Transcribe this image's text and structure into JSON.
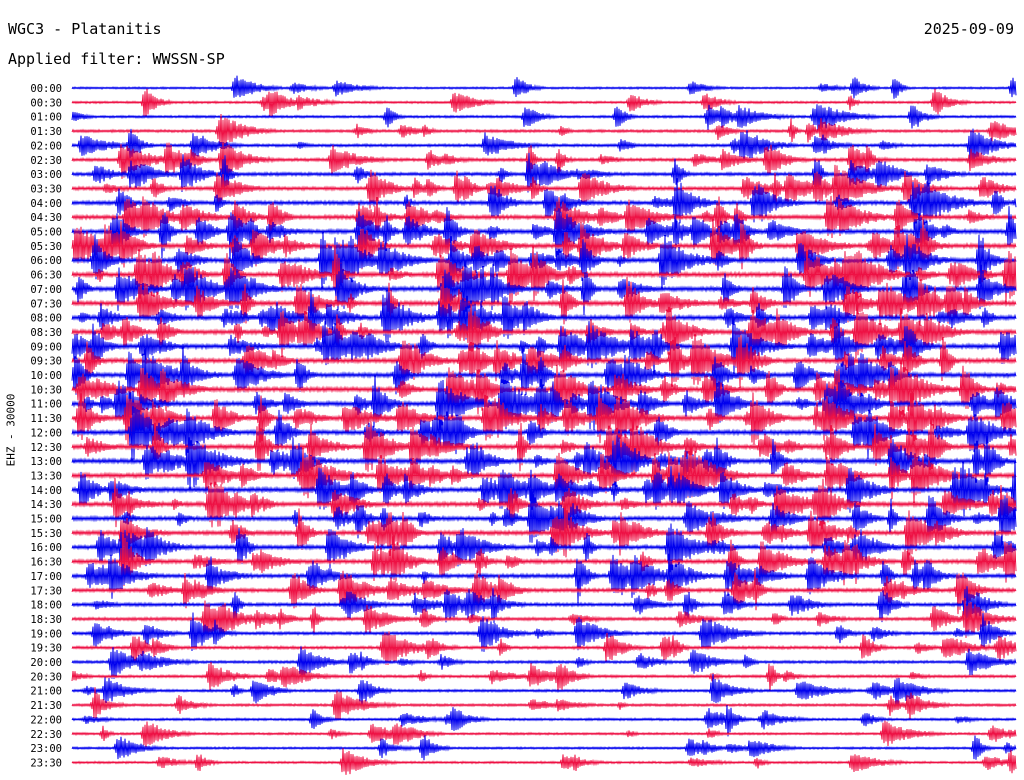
{
  "header": {
    "station": "WGC3 - Platanitis",
    "date": "2025-09-09",
    "filter_label": "Applied filter:",
    "filter_value": "WWSSN-SP",
    "channel": "EHZ - 30000"
  },
  "chart_data": {
    "type": "line",
    "title": "WGC3 - Platanitis",
    "subtitle": "Applied filter: WWSSN-SP",
    "ylabel": "EHZ - 30000",
    "xlabel": "",
    "row_labels": [
      "00:00",
      "00:30",
      "01:00",
      "01:30",
      "02:00",
      "02:30",
      "03:00",
      "03:30",
      "04:00",
      "04:30",
      "05:00",
      "05:30",
      "06:00",
      "06:30",
      "07:00",
      "07:30",
      "08:00",
      "08:30",
      "09:00",
      "09:30",
      "10:00",
      "10:30",
      "11:00",
      "11:30",
      "12:00",
      "12:30",
      "13:00",
      "13:30",
      "14:00",
      "14:30",
      "15:00",
      "15:30",
      "16:00",
      "16:30",
      "17:00",
      "17:30",
      "18:00",
      "18:30",
      "19:00",
      "19:30",
      "20:00",
      "20:30",
      "21:00",
      "21:30",
      "22:00",
      "22:30",
      "23:00",
      "23:30"
    ],
    "row_colors": [
      "#0000ee",
      "#ee1144"
    ],
    "activity_level": [
      0.25,
      0.3,
      0.35,
      0.45,
      0.5,
      0.6,
      0.65,
      0.7,
      0.8,
      0.85,
      0.9,
      0.95,
      1.0,
      1.0,
      1.0,
      1.0,
      1.0,
      1.0,
      1.0,
      1.0,
      1.0,
      1.0,
      1.0,
      1.0,
      1.0,
      1.0,
      1.0,
      1.0,
      1.0,
      0.95,
      0.9,
      0.9,
      0.85,
      0.85,
      0.8,
      0.75,
      0.65,
      0.6,
      0.55,
      0.5,
      0.45,
      0.45,
      0.4,
      0.4,
      0.35,
      0.3,
      0.3,
      0.3
    ]
  }
}
